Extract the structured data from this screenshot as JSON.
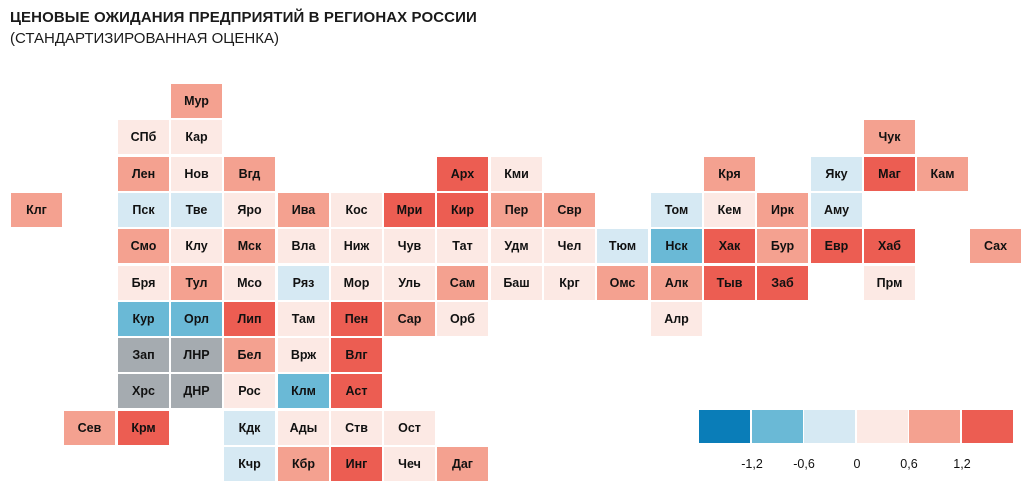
{
  "title": "ЦЕНОВЫЕ ОЖИДАНИЯ ПРЕДПРИЯТИЙ В РЕГИОНАХ РОССИИ",
  "subtitle": "(СТАНДАРТИЗИРОВАННАЯ ОЦЕНКА)",
  "colors": {
    "c_dark_blue": "#0a7db8",
    "c_mid_blue": "#6ab9d6",
    "c_light_blue": "#d6e9f3",
    "c_neutral": "#fce9e4",
    "c_light_red": "#f4a190",
    "c_red": "#ec5d52",
    "c_gray": "#a5abb0",
    "c_white": "#ffffff"
  },
  "chart_data": {
    "type": "heatmap",
    "title": "ЦЕНОВЫЕ ОЖИДАНИЯ ПРЕДПРИЯТИЙ В РЕГИОНАХ РОССИИ",
    "subtitle": "(СТАНДАРТИЗИРОВАННАЯ ОЦЕНКА)",
    "legend": {
      "ticks": [
        "-1,2",
        "-0,6",
        "0",
        "0,6",
        "1,2"
      ],
      "bins": [
        {
          "color": "#0a7db8",
          "range": [
            -1.8,
            -1.2
          ]
        },
        {
          "color": "#6ab9d6",
          "range": [
            -1.2,
            -0.6
          ]
        },
        {
          "color": "#d6e9f3",
          "range": [
            -0.6,
            0
          ]
        },
        {
          "color": "#fce9e4",
          "range": [
            0,
            0.6
          ]
        },
        {
          "color": "#f4a190",
          "range": [
            0.6,
            1.2
          ]
        },
        {
          "color": "#ec5d52",
          "range": [
            1.2,
            1.8
          ]
        }
      ]
    },
    "regions": [
      {
        "label": "Мур",
        "row": 0,
        "col": 3,
        "value": 0.9
      },
      {
        "label": "СПб",
        "row": 1,
        "col": 2,
        "value": 0.2
      },
      {
        "label": "Кар",
        "row": 1,
        "col": 3,
        "value": 0.1
      },
      {
        "label": "Чук",
        "row": 1,
        "col": 16,
        "value": 0.9
      },
      {
        "label": "Лен",
        "row": 2,
        "col": 2,
        "value": 0.9
      },
      {
        "label": "Нов",
        "row": 2,
        "col": 3,
        "value": 0.1
      },
      {
        "label": "Вгд",
        "row": 2,
        "col": 4,
        "value": 0.9
      },
      {
        "label": "Арх",
        "row": 2,
        "col": 8,
        "value": 1.4
      },
      {
        "label": "Кми",
        "row": 2,
        "col": 9,
        "value": 0.2
      },
      {
        "label": "Кря",
        "row": 2,
        "col": 13,
        "value": 0.9
      },
      {
        "label": "Яку",
        "row": 2,
        "col": 15,
        "value": -0.3
      },
      {
        "label": "Маг",
        "row": 2,
        "col": 16,
        "value": 1.4
      },
      {
        "label": "Кам",
        "row": 2,
        "col": 17,
        "value": 0.9
      },
      {
        "label": "Клг",
        "row": 3,
        "col": 0,
        "value": 0.9
      },
      {
        "label": "Пск",
        "row": 3,
        "col": 2,
        "value": -0.3
      },
      {
        "label": "Тве",
        "row": 3,
        "col": 3,
        "value": -0.3
      },
      {
        "label": "Яро",
        "row": 3,
        "col": 4,
        "value": 0.2
      },
      {
        "label": "Ива",
        "row": 3,
        "col": 5,
        "value": 0.9
      },
      {
        "label": "Кос",
        "row": 3,
        "col": 6,
        "value": 0.2
      },
      {
        "label": "Мри",
        "row": 3,
        "col": 7,
        "value": 1.4
      },
      {
        "label": "Кир",
        "row": 3,
        "col": 8,
        "value": 1.4
      },
      {
        "label": "Пер",
        "row": 3,
        "col": 9,
        "value": 0.9
      },
      {
        "label": "Свр",
        "row": 3,
        "col": 10,
        "value": 0.9
      },
      {
        "label": "Том",
        "row": 3,
        "col": 12,
        "value": -0.3
      },
      {
        "label": "Кем",
        "row": 3,
        "col": 13,
        "value": 0.2
      },
      {
        "label": "Ирк",
        "row": 3,
        "col": 14,
        "value": 0.9
      },
      {
        "label": "Аму",
        "row": 3,
        "col": 15,
        "value": -0.3
      },
      {
        "label": "Смо",
        "row": 4,
        "col": 2,
        "value": 0.9
      },
      {
        "label": "Клу",
        "row": 4,
        "col": 3,
        "value": 0.2
      },
      {
        "label": "Мск",
        "row": 4,
        "col": 4,
        "value": 0.9
      },
      {
        "label": "Вла",
        "row": 4,
        "col": 5,
        "value": 0.2
      },
      {
        "label": "Ниж",
        "row": 4,
        "col": 6,
        "value": 0.2
      },
      {
        "label": "Чув",
        "row": 4,
        "col": 7,
        "value": 0.2
      },
      {
        "label": "Тат",
        "row": 4,
        "col": 8,
        "value": 0.2
      },
      {
        "label": "Удм",
        "row": 4,
        "col": 9,
        "value": 0.2
      },
      {
        "label": "Чел",
        "row": 4,
        "col": 10,
        "value": 0.2
      },
      {
        "label": "Тюм",
        "row": 4,
        "col": 11,
        "value": -0.3
      },
      {
        "label": "Нск",
        "row": 4,
        "col": 12,
        "value": -0.9
      },
      {
        "label": "Хак",
        "row": 4,
        "col": 13,
        "value": 1.4
      },
      {
        "label": "Бур",
        "row": 4,
        "col": 14,
        "value": 0.9
      },
      {
        "label": "Евр",
        "row": 4,
        "col": 15,
        "value": 1.4
      },
      {
        "label": "Хаб",
        "row": 4,
        "col": 16,
        "value": 1.4
      },
      {
        "label": "Сах",
        "row": 4,
        "col": 18,
        "value": 0.9
      },
      {
        "label": "Бря",
        "row": 5,
        "col": 2,
        "value": 0.2
      },
      {
        "label": "Тул",
        "row": 5,
        "col": 3,
        "value": 0.9
      },
      {
        "label": "Мсо",
        "row": 5,
        "col": 4,
        "value": 0.2
      },
      {
        "label": "Ряз",
        "row": 5,
        "col": 5,
        "value": -0.3
      },
      {
        "label": "Мор",
        "row": 5,
        "col": 6,
        "value": 0.2
      },
      {
        "label": "Уль",
        "row": 5,
        "col": 7,
        "value": 0.2
      },
      {
        "label": "Сам",
        "row": 5,
        "col": 8,
        "value": 0.9
      },
      {
        "label": "Баш",
        "row": 5,
        "col": 9,
        "value": 0.2
      },
      {
        "label": "Крг",
        "row": 5,
        "col": 10,
        "value": 0.2
      },
      {
        "label": "Омс",
        "row": 5,
        "col": 11,
        "value": 0.9
      },
      {
        "label": "Алк",
        "row": 5,
        "col": 12,
        "value": 0.9
      },
      {
        "label": "Тыв",
        "row": 5,
        "col": 13,
        "value": 1.4
      },
      {
        "label": "Заб",
        "row": 5,
        "col": 14,
        "value": 1.4
      },
      {
        "label": "Прм",
        "row": 5,
        "col": 16,
        "value": 0.2
      },
      {
        "label": "Кур",
        "row": 6,
        "col": 2,
        "value": -0.9
      },
      {
        "label": "Орл",
        "row": 6,
        "col": 3,
        "value": -0.9
      },
      {
        "label": "Лип",
        "row": 6,
        "col": 4,
        "value": 1.4
      },
      {
        "label": "Там",
        "row": 6,
        "col": 5,
        "value": 0.2
      },
      {
        "label": "Пен",
        "row": 6,
        "col": 6,
        "value": 1.4
      },
      {
        "label": "Сар",
        "row": 6,
        "col": 7,
        "value": 0.9
      },
      {
        "label": "Орб",
        "row": 6,
        "col": 8,
        "value": 0.2
      },
      {
        "label": "Алр",
        "row": 6,
        "col": 12,
        "value": 0.2
      },
      {
        "label": "Зап",
        "row": 7,
        "col": 2,
        "value": null
      },
      {
        "label": "ЛНР",
        "row": 7,
        "col": 3,
        "value": null
      },
      {
        "label": "Бел",
        "row": 7,
        "col": 4,
        "value": 0.9
      },
      {
        "label": "Врж",
        "row": 7,
        "col": 5,
        "value": 0.2
      },
      {
        "label": "Влг",
        "row": 7,
        "col": 6,
        "value": 1.4
      },
      {
        "label": "Хрс",
        "row": 8,
        "col": 2,
        "value": null
      },
      {
        "label": "ДНР",
        "row": 8,
        "col": 3,
        "value": null
      },
      {
        "label": "Рос",
        "row": 8,
        "col": 4,
        "value": 0.2
      },
      {
        "label": "Клм",
        "row": 8,
        "col": 5,
        "value": -0.9
      },
      {
        "label": "Аст",
        "row": 8,
        "col": 6,
        "value": 1.4
      },
      {
        "label": "Сев",
        "row": 9,
        "col": 1,
        "value": 0.9
      },
      {
        "label": "Крм",
        "row": 9,
        "col": 2,
        "value": 1.4
      },
      {
        "label": "Кдк",
        "row": 9,
        "col": 4,
        "value": -0.3
      },
      {
        "label": "Ады",
        "row": 9,
        "col": 5,
        "value": 0.2
      },
      {
        "label": "Ств",
        "row": 9,
        "col": 6,
        "value": 0.2
      },
      {
        "label": "Ост",
        "row": 9,
        "col": 7,
        "value": 0.2
      },
      {
        "label": "Кчр",
        "row": 10,
        "col": 4,
        "value": -0.3
      },
      {
        "label": "Кбр",
        "row": 10,
        "col": 5,
        "value": 0.9
      },
      {
        "label": "Инг",
        "row": 10,
        "col": 6,
        "value": 1.4
      },
      {
        "label": "Чеч",
        "row": 10,
        "col": 7,
        "value": 0.2
      },
      {
        "label": "Даг",
        "row": 10,
        "col": 8,
        "value": 0.9
      }
    ]
  }
}
